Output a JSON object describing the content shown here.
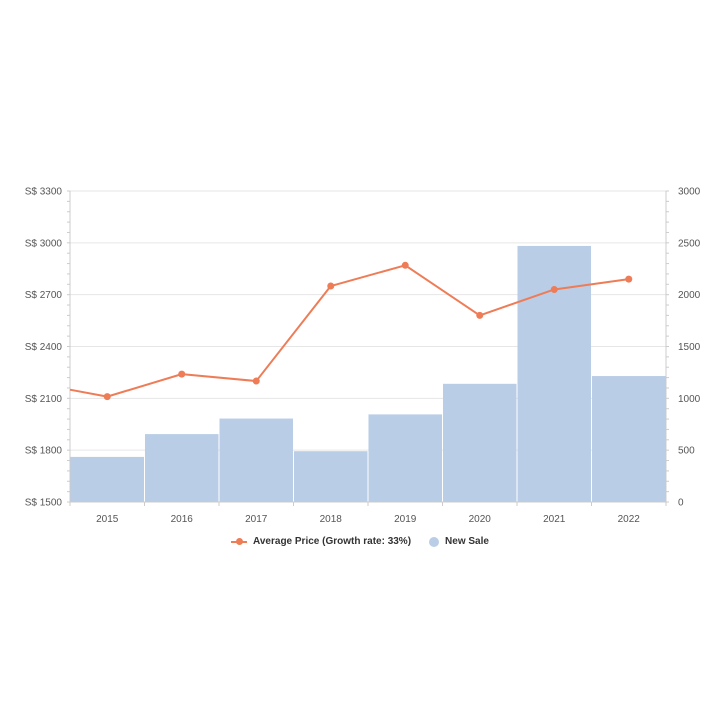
{
  "colors": {
    "line": "#ee7c57",
    "bar": "#b9cde6",
    "grid": "#e6e6e6",
    "axis": "#cccccc"
  },
  "legend": {
    "line_label": "Average Price (Growth rate: 33%)",
    "bar_label": "New Sale"
  },
  "chart_data": {
    "type": "bar",
    "categories": [
      "2015",
      "2016",
      "2017",
      "2018",
      "2019",
      "2020",
      "2021",
      "2022"
    ],
    "series": [
      {
        "name": "New Sale",
        "type": "bar",
        "axis": "right",
        "values": [
          435,
          655,
          805,
          490,
          845,
          1140,
          2470,
          1215
        ]
      },
      {
        "name": "Average Price (Growth rate: 33%)",
        "type": "line",
        "axis": "left",
        "values": [
          2110,
          2240,
          2200,
          2750,
          2870,
          2580,
          2730,
          2790
        ],
        "left_edge_value": 2150
      }
    ],
    "y_left": {
      "lim": [
        1500,
        3300
      ],
      "ticks": [
        1500,
        1800,
        2100,
        2400,
        2700,
        3000,
        3300
      ],
      "tick_labels": [
        "S$ 1500",
        "S$ 1800",
        "S$ 2100",
        "S$ 2400",
        "S$ 2700",
        "S$ 3000",
        "S$ 3300"
      ]
    },
    "y_right": {
      "lim": [
        0,
        3000
      ],
      "ticks": [
        0,
        500,
        1000,
        1500,
        2000,
        2500,
        3000
      ],
      "tick_labels": [
        "0",
        "500",
        "1000",
        "1500",
        "2000",
        "2500",
        "3000"
      ]
    },
    "grid": true,
    "legend_position": "bottom-center"
  }
}
